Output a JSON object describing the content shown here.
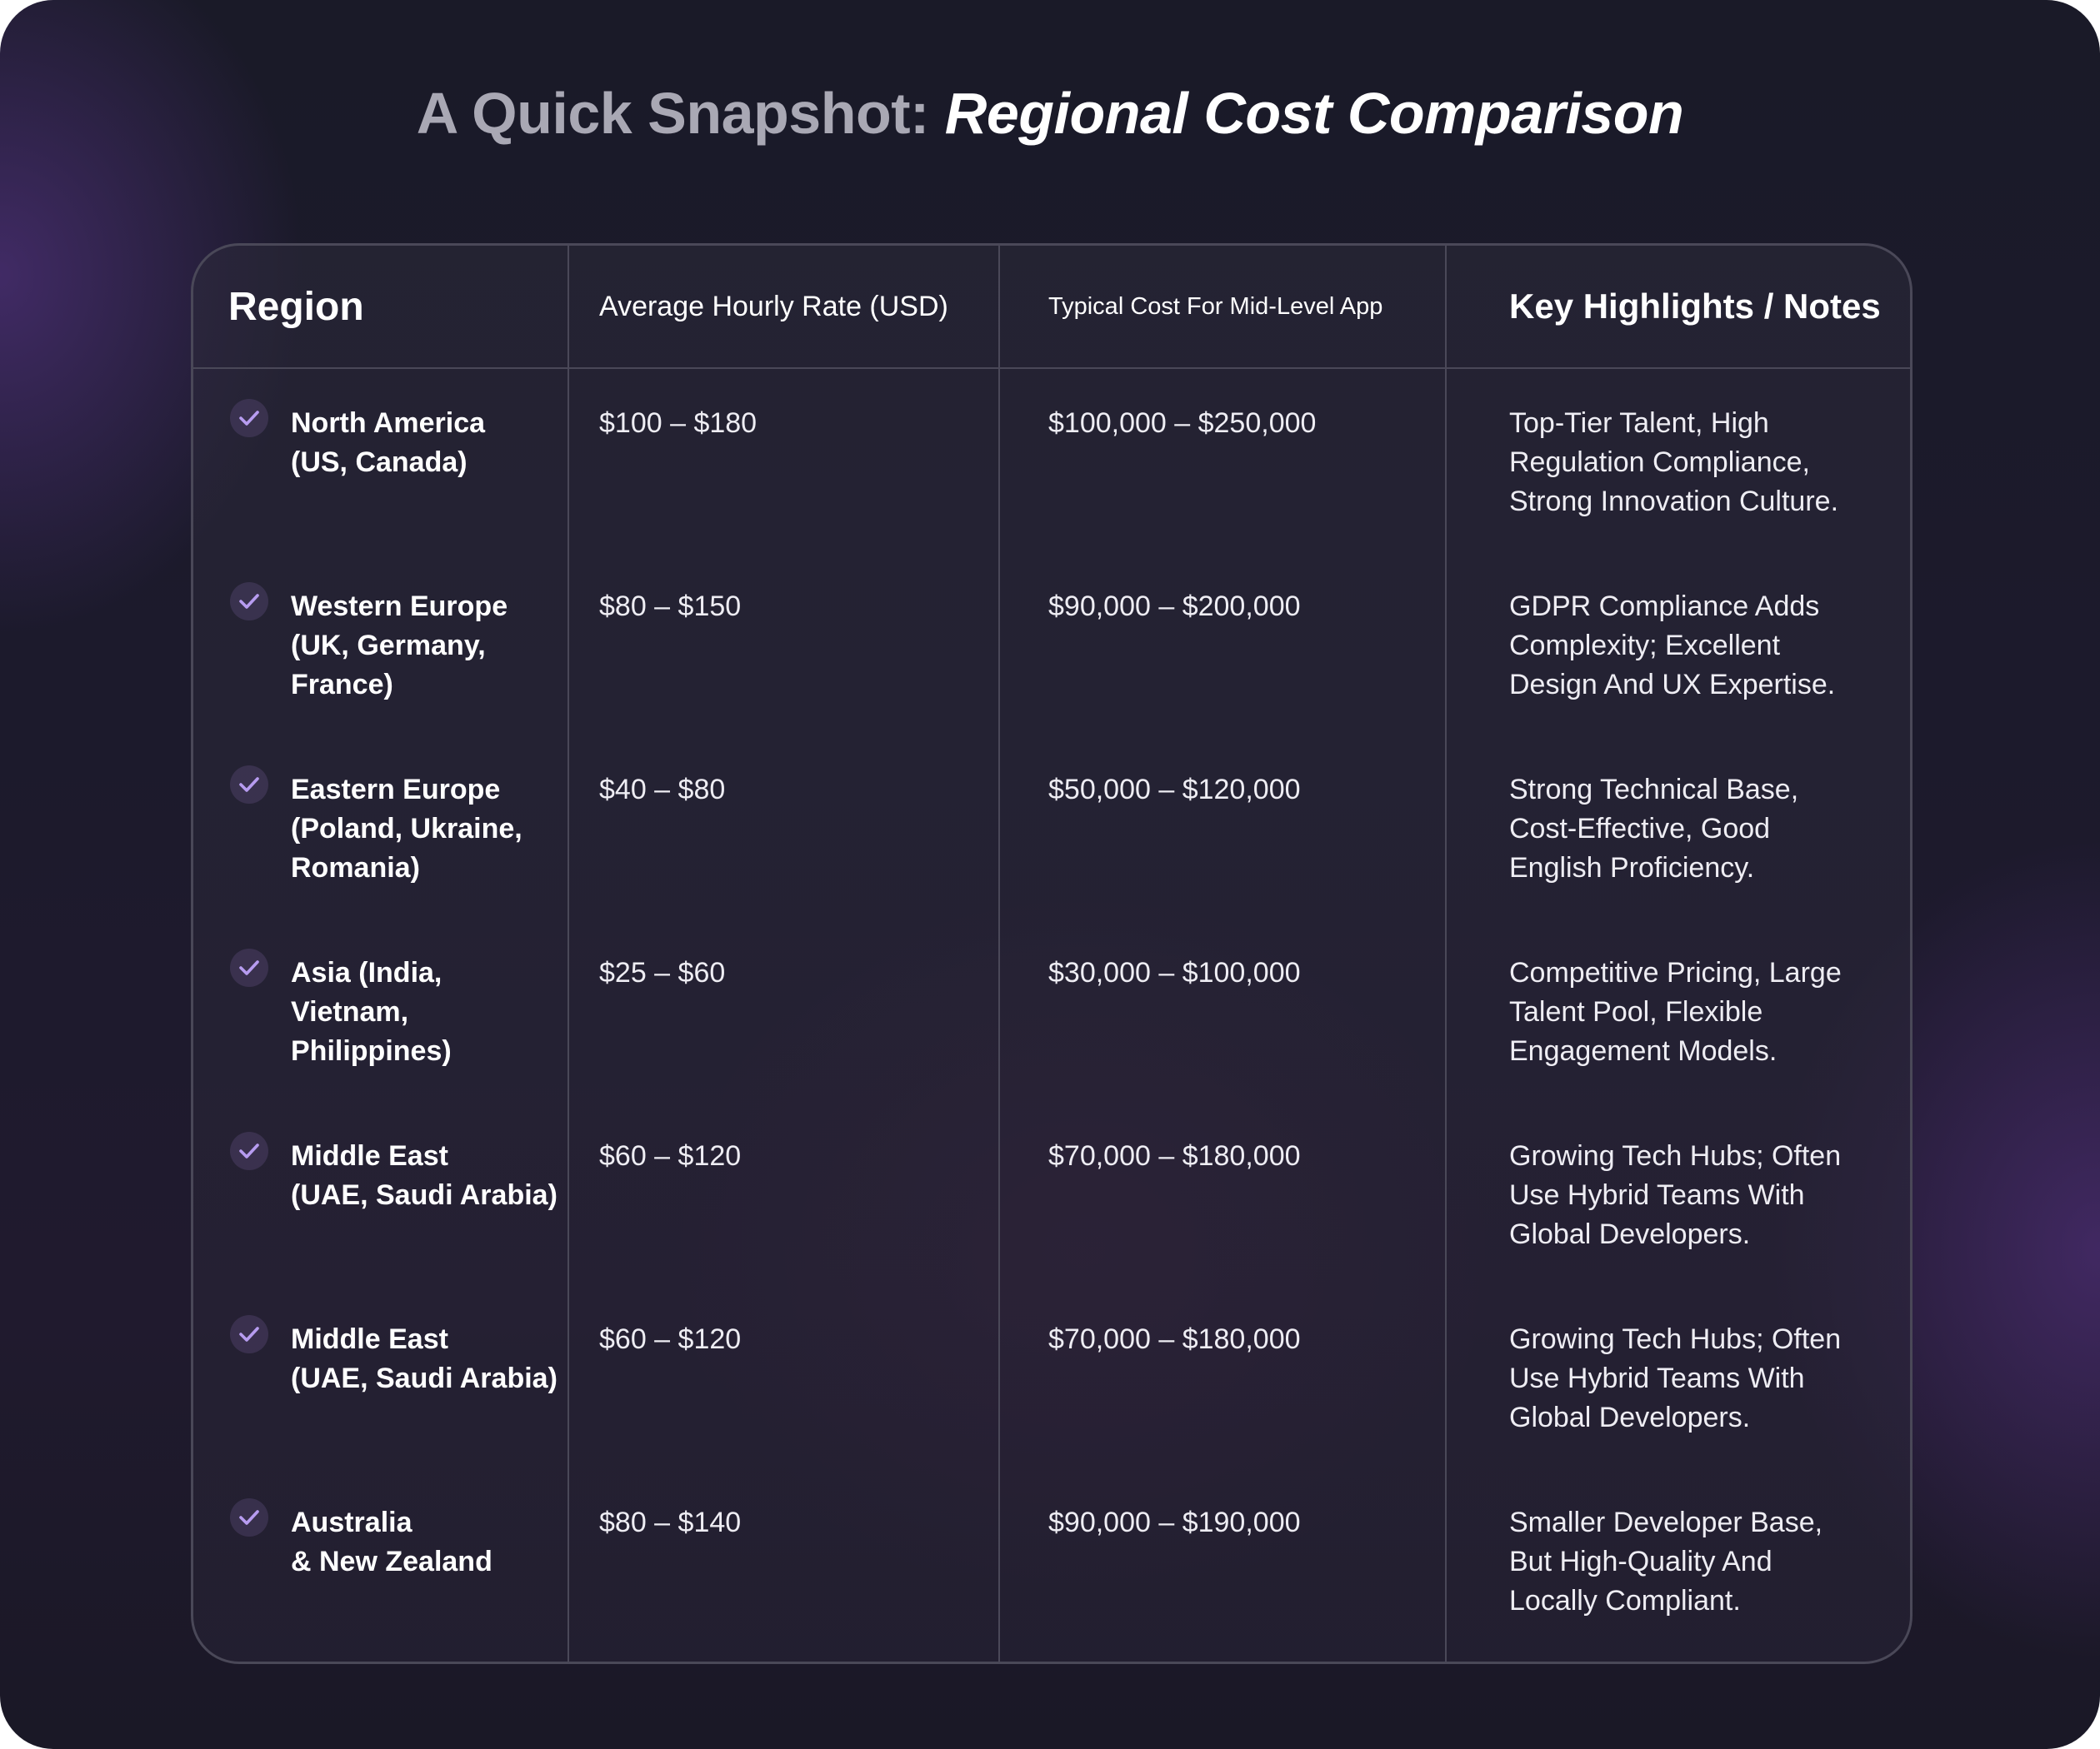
{
  "title": {
    "lead": "A Quick Snapshot: ",
    "emphasis": "Regional Cost Comparison"
  },
  "columns": [
    "Region",
    "Average Hourly Rate (USD)",
    "Typical Cost For Mid-Level App",
    "Key Highlights / Notes"
  ],
  "rows": [
    {
      "region": [
        "North America",
        "(US, Canada)"
      ],
      "rate": "$100 – $180",
      "cost": "$100,000 – $250,000",
      "notes": [
        "Top-Tier Talent, High",
        "Regulation Compliance,",
        "Strong Innovation Culture."
      ]
    },
    {
      "region": [
        "Western Europe",
        "(UK, Germany,",
        "France)"
      ],
      "rate": "$80 – $150",
      "cost": "$90,000 – $200,000",
      "notes": [
        "GDPR Compliance Adds",
        "Complexity; Excellent",
        "Design And UX Expertise."
      ]
    },
    {
      "region": [
        "Eastern Europe",
        "(Poland, Ukraine,",
        " Romania)"
      ],
      "rate": "$40 – $80",
      "cost": "$50,000 – $120,000",
      "notes": [
        "Strong Technical Base,",
        "Cost-Effective, Good",
        "English Proficiency."
      ]
    },
    {
      "region": [
        "Asia (India,",
        "Vietnam,",
        "Philippines)"
      ],
      "rate": "$25 – $60",
      "cost": "$30,000 – $100,000",
      "notes": [
        "Competitive Pricing, Large",
        "Talent Pool, Flexible",
        "Engagement Models."
      ]
    },
    {
      "region": [
        "Middle East",
        "(UAE, Saudi Arabia)"
      ],
      "rate": "$60 – $120",
      "cost": "$70,000 – $180,000",
      "notes": [
        "Growing Tech Hubs; Often",
        "Use Hybrid Teams With",
        "Global Developers."
      ]
    },
    {
      "region": [
        "Middle East",
        "(UAE, Saudi Arabia)"
      ],
      "rate": "$60 – $120",
      "cost": "$70,000 – $180,000",
      "notes": [
        "Growing Tech Hubs; Often",
        "Use Hybrid Teams With",
        "Global Developers."
      ]
    },
    {
      "region": [
        "Australia",
        "& New Zealand"
      ],
      "rate": "$80 – $140",
      "cost": "$90,000 – $190,000",
      "notes": [
        "Smaller Developer Base,",
        "But High-Quality And",
        "Locally Compliant."
      ]
    }
  ],
  "icons": {
    "row_marker": "check-icon"
  },
  "colors": {
    "check": "#b79cf0",
    "border": "#4a4858"
  }
}
